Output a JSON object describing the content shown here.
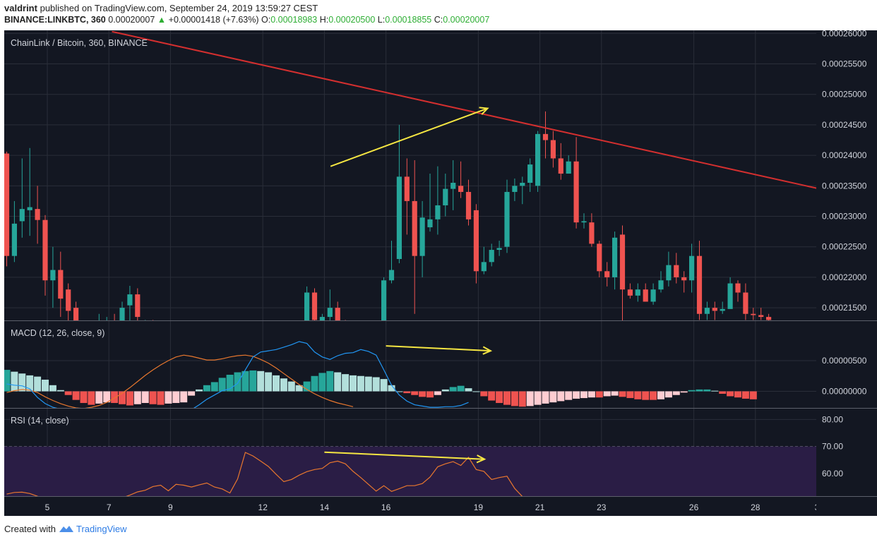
{
  "header": {
    "user": "valdrint",
    "published": "published on TradingView.com, September 24, 2019 13:59:27 CEST",
    "symbol": "BINANCE:LINKBTC, 360",
    "price": "0.00020007",
    "change": "+0.00001418 (+7.63%)",
    "o_label": "O:",
    "o_value": "0.00018983",
    "h_label": "H:",
    "h_value": "0.00020500",
    "l_label": "L:",
    "l_value": "0.00018855",
    "c_label": "C:",
    "c_value": "0.00020007"
  },
  "footer": {
    "created_with": "Created with",
    "brand": "TradingView"
  },
  "colors": {
    "background": "#131722",
    "grid": "#2a2e39",
    "text": "#d1d4dc",
    "up": "#26a69a",
    "down": "#ef5350",
    "trendline": "#d32f2f",
    "annotation": "#f5e642",
    "macd_line": "#2196f3",
    "signal_line": "#e8772e",
    "hist_up_strong": "#26a69a",
    "hist_up_weak": "#b2dfdb",
    "hist_down_strong": "#ef5350",
    "hist_down_weak": "#ffcdd2",
    "rsi_line": "#e8772e",
    "rsi_band": "#2a1d45"
  },
  "chart_data": [
    {
      "type": "candlestick",
      "title": "ChainLink / Bitcoin, 360, BINANCE",
      "y_ticks": [
        "0.00026000",
        "0.00025500",
        "0.00025000",
        "0.00024500",
        "0.00024000",
        "0.00023500",
        "0.00023000",
        "0.00022500",
        "0.00022000",
        "0.00021500"
      ],
      "ylim": [
        0.00021236,
        0.0002605
      ],
      "x_ticks": [
        "5",
        "7",
        "9",
        "12",
        "14",
        "16",
        "19",
        "21",
        "23",
        "26",
        "28",
        "3"
      ],
      "candles": [
        {
          "o": 0.0002403,
          "h": 0.0002406,
          "l": 0.0002218,
          "c": 0.0002235
        },
        {
          "o": 0.0002235,
          "h": 0.0002325,
          "l": 0.0002225,
          "c": 0.0002288
        },
        {
          "o": 0.0002292,
          "h": 0.0002395,
          "l": 0.0002265,
          "c": 0.0002312
        },
        {
          "o": 0.000231,
          "h": 0.0002412,
          "l": 0.0002268,
          "c": 0.0002315
        },
        {
          "o": 0.0002312,
          "h": 0.000235,
          "l": 0.0002255,
          "c": 0.0002294
        },
        {
          "o": 0.0002294,
          "h": 0.0002302,
          "l": 0.000217,
          "c": 0.0002195
        },
        {
          "o": 0.0002195,
          "h": 0.000225,
          "l": 0.000215,
          "c": 0.0002212
        },
        {
          "o": 0.0002212,
          "h": 0.0002242,
          "l": 0.0002135,
          "c": 0.0002165
        },
        {
          "o": 0.000218,
          "h": 0.000219,
          "l": 0.00021,
          "c": 0.0002145
        },
        {
          "o": 0.000215,
          "h": 0.000216,
          "l": 0.00021,
          "c": 0.000211
        },
        {
          "o": 0.000211,
          "h": 0.0002117,
          "l": 0.00021,
          "c": 0.0002105
        },
        {
          "o": 0.000211,
          "h": 0.0002118,
          "l": 0.00021,
          "c": 0.0002115
        },
        {
          "o": 0.000212,
          "h": 0.000214,
          "l": 0.00021,
          "c": 0.000212
        },
        {
          "o": 0.000212,
          "h": 0.0002135,
          "l": 0.00021,
          "c": 0.0002125
        },
        {
          "o": 0.0002125,
          "h": 0.000214,
          "l": 0.00021,
          "c": 0.0002118
        },
        {
          "o": 0.000212,
          "h": 0.000216,
          "l": 0.00021,
          "c": 0.000215
        },
        {
          "o": 0.0002154,
          "h": 0.0002186,
          "l": 0.00021,
          "c": 0.0002172
        },
        {
          "o": 0.0002172,
          "h": 0.0002182,
          "l": 0.00021,
          "c": 0.0002135
        },
        {
          "o": 0.000212,
          "h": 0.000213,
          "l": 0.00021,
          "c": 0.0002125
        },
        {
          "o": 0.0002125,
          "h": 0.000213,
          "l": 0.00021,
          "c": 0.0002118
        },
        {
          "o": 0.0002118,
          "h": 0.0002125,
          "l": 0.00021,
          "c": 0.0002112
        },
        {
          "o": 0.0002112,
          "h": 0.0002122,
          "l": 0.00021,
          "c": 0.0002117
        },
        {
          "o": 0.0002117,
          "h": 0.0002126,
          "l": 0.00021,
          "c": 0.0002115
        },
        {
          "o": 0.0002115,
          "h": 0.0002125,
          "l": 0.00021,
          "c": 0.0002113
        },
        {
          "o": 0.0002113,
          "h": 0.0002123,
          "l": 0.00021,
          "c": 0.0002116
        },
        {
          "o": 0.0002116,
          "h": 0.0002124,
          "l": 0.00021,
          "c": 0.0002114
        },
        {
          "o": 0.0002114,
          "h": 0.0002124,
          "l": 0.00021,
          "c": 0.0002118
        },
        {
          "o": 0.0002118,
          "h": 0.0002125,
          "l": 0.00021,
          "c": 0.0002115
        },
        {
          "o": 0.0002115,
          "h": 0.0002123,
          "l": 0.00021,
          "c": 0.0002117
        },
        {
          "o": 0.0002117,
          "h": 0.0002125,
          "l": 0.00021,
          "c": 0.0002114
        },
        {
          "o": 0.0002114,
          "h": 0.0002122,
          "l": 0.00021,
          "c": 0.0002116
        },
        {
          "o": 0.0002116,
          "h": 0.0002124,
          "l": 0.00021,
          "c": 0.0002113
        },
        {
          "o": 0.0002113,
          "h": 0.0002123,
          "l": 0.00021,
          "c": 0.0002115
        },
        {
          "o": 0.0002115,
          "h": 0.0002122,
          "l": 0.00021,
          "c": 0.0002112
        },
        {
          "o": 0.0002112,
          "h": 0.0002122,
          "l": 0.00021,
          "c": 0.0002114
        },
        {
          "o": 0.0002114,
          "h": 0.0002124,
          "l": 0.00021,
          "c": 0.0002116
        },
        {
          "o": 0.0002116,
          "h": 0.0002125,
          "l": 0.00021,
          "c": 0.0002113
        },
        {
          "o": 0.0002113,
          "h": 0.0002122,
          "l": 0.00021,
          "c": 0.0002115
        },
        {
          "o": 0.0002115,
          "h": 0.0002124,
          "l": 0.00021,
          "c": 0.0002112
        },
        {
          "o": 0.000211,
          "h": 0.0002185,
          "l": 0.00021,
          "c": 0.0002175
        },
        {
          "o": 0.0002175,
          "h": 0.0002182,
          "l": 0.000212,
          "c": 0.000213
        },
        {
          "o": 0.0002125,
          "h": 0.000214,
          "l": 0.00021,
          "c": 0.0002135
        },
        {
          "o": 0.0002135,
          "h": 0.000218,
          "l": 0.000211,
          "c": 0.000215
        },
        {
          "o": 0.000215,
          "h": 0.000216,
          "l": 0.00021,
          "c": 0.000212
        },
        {
          "o": 0.000212,
          "h": 0.000213,
          "l": 0.00021,
          "c": 0.0002115
        },
        {
          "o": 0.0002115,
          "h": 0.000212,
          "l": 0.00021,
          "c": 0.000211
        },
        {
          "o": 0.000211,
          "h": 0.000212,
          "l": 0.00021,
          "c": 0.0002112
        },
        {
          "o": 0.0002112,
          "h": 0.000212,
          "l": 0.00021,
          "c": 0.0002114
        },
        {
          "o": 0.0002114,
          "h": 0.000212,
          "l": 0.00021,
          "c": 0.0002111
        },
        {
          "o": 0.000212,
          "h": 0.00022,
          "l": 0.000212,
          "c": 0.0002195
        },
        {
          "o": 0.0002195,
          "h": 0.000226,
          "l": 0.000219,
          "c": 0.0002212
        },
        {
          "o": 0.000223,
          "h": 0.000245,
          "l": 0.0002223,
          "c": 0.0002365
        },
        {
          "o": 0.0002365,
          "h": 0.0002395,
          "l": 0.000227,
          "c": 0.0002325
        },
        {
          "o": 0.0002325,
          "h": 0.0002392,
          "l": 0.000214,
          "c": 0.0002235
        },
        {
          "o": 0.0002235,
          "h": 0.0002325,
          "l": 0.00022,
          "c": 0.0002298
        },
        {
          "o": 0.0002282,
          "h": 0.000237,
          "l": 0.0002275,
          "c": 0.0002295
        },
        {
          "o": 0.0002295,
          "h": 0.0002382,
          "l": 0.000227,
          "c": 0.0002318
        },
        {
          "o": 0.0002318,
          "h": 0.000237,
          "l": 0.00023,
          "c": 0.0002345
        },
        {
          "o": 0.0002345,
          "h": 0.0002392,
          "l": 0.000231,
          "c": 0.0002355
        },
        {
          "o": 0.000235,
          "h": 0.000239,
          "l": 0.000233,
          "c": 0.000234
        },
        {
          "o": 0.000234,
          "h": 0.000236,
          "l": 0.0002285,
          "c": 0.0002295
        },
        {
          "o": 0.000231,
          "h": 0.000232,
          "l": 0.000219,
          "c": 0.000221
        },
        {
          "o": 0.000221,
          "h": 0.000225,
          "l": 0.0002205,
          "c": 0.0002225
        },
        {
          "o": 0.0002225,
          "h": 0.0002255,
          "l": 0.0002218,
          "c": 0.0002245
        },
        {
          "o": 0.0002245,
          "h": 0.000226,
          "l": 0.0002235,
          "c": 0.0002248
        },
        {
          "o": 0.000225,
          "h": 0.000236,
          "l": 0.000224,
          "c": 0.000234
        },
        {
          "o": 0.000234,
          "h": 0.0002362,
          "l": 0.0002325,
          "c": 0.000235
        },
        {
          "o": 0.000235,
          "h": 0.0002365,
          "l": 0.000232,
          "c": 0.0002355
        },
        {
          "o": 0.0002355,
          "h": 0.0002395,
          "l": 0.000234,
          "c": 0.0002385
        },
        {
          "o": 0.000235,
          "h": 0.000244,
          "l": 0.000234,
          "c": 0.0002435
        },
        {
          "o": 0.0002435,
          "h": 0.0002472,
          "l": 0.0002395,
          "c": 0.0002425
        },
        {
          "o": 0.0002425,
          "h": 0.000244,
          "l": 0.000238,
          "c": 0.0002395
        },
        {
          "o": 0.0002395,
          "h": 0.000242,
          "l": 0.000236,
          "c": 0.000237
        },
        {
          "o": 0.000237,
          "h": 0.00024,
          "l": 0.000237,
          "c": 0.000239
        },
        {
          "o": 0.000239,
          "h": 0.000243,
          "l": 0.000228,
          "c": 0.000229
        },
        {
          "o": 0.000229,
          "h": 0.0002305,
          "l": 0.000228,
          "c": 0.0002292
        },
        {
          "o": 0.000229,
          "h": 0.0002305,
          "l": 0.000225,
          "c": 0.0002255
        },
        {
          "o": 0.0002255,
          "h": 0.000226,
          "l": 0.00022,
          "c": 0.000221
        },
        {
          "o": 0.000221,
          "h": 0.0002225,
          "l": 0.0002185,
          "c": 0.00022
        },
        {
          "o": 0.00022,
          "h": 0.0002275,
          "l": 0.000218,
          "c": 0.0002265
        },
        {
          "o": 0.000227,
          "h": 0.0002285,
          "l": 0.0002125,
          "c": 0.000218
        },
        {
          "o": 0.000218,
          "h": 0.000219,
          "l": 0.0002165,
          "c": 0.000217
        },
        {
          "o": 0.000217,
          "h": 0.000219,
          "l": 0.000216,
          "c": 0.000218
        },
        {
          "o": 0.000218,
          "h": 0.000219,
          "l": 0.000216,
          "c": 0.000216
        },
        {
          "o": 0.000216,
          "h": 0.000219,
          "l": 0.0002155,
          "c": 0.000218
        },
        {
          "o": 0.000218,
          "h": 0.000221,
          "l": 0.0002175,
          "c": 0.0002195
        },
        {
          "o": 0.0002195,
          "h": 0.0002242,
          "l": 0.0002185,
          "c": 0.000222
        },
        {
          "o": 0.000222,
          "h": 0.000224,
          "l": 0.000219,
          "c": 0.00022
        },
        {
          "o": 0.00022,
          "h": 0.000221,
          "l": 0.0002175,
          "c": 0.0002195
        },
        {
          "o": 0.0002195,
          "h": 0.0002255,
          "l": 0.0002175,
          "c": 0.0002235
        },
        {
          "o": 0.0002235,
          "h": 0.000226,
          "l": 0.000213,
          "c": 0.000214
        },
        {
          "o": 0.000214,
          "h": 0.000216,
          "l": 0.000213,
          "c": 0.000215
        },
        {
          "o": 0.000215,
          "h": 0.000216,
          "l": 0.000213,
          "c": 0.0002145
        },
        {
          "o": 0.0002145,
          "h": 0.000216,
          "l": 0.000214,
          "c": 0.0002148
        },
        {
          "o": 0.0002148,
          "h": 0.00022,
          "l": 0.000215,
          "c": 0.000219
        },
        {
          "o": 0.000219,
          "h": 0.0002195,
          "l": 0.000216,
          "c": 0.0002175
        },
        {
          "o": 0.0002175,
          "h": 0.000219,
          "l": 0.000213,
          "c": 0.000214
        },
        {
          "o": 0.000214,
          "h": 0.000215,
          "l": 0.000213,
          "c": 0.0002138
        },
        {
          "o": 0.0002138,
          "h": 0.000215,
          "l": 0.000213,
          "c": 0.0002135
        },
        {
          "o": 0.0002135,
          "h": 0.000214,
          "l": 0.000212,
          "c": 0.000213
        }
      ]
    },
    {
      "type": "bar",
      "title": "MACD (12, 26, close, 9)",
      "y_ticks": [
        "0.00000500",
        "0.00000000"
      ],
      "histogram": [
        3.5,
        3.2,
        2.9,
        2.6,
        2.4,
        1.9,
        1.0,
        0.2,
        -0.6,
        -1.4,
        -1.9,
        -2.2,
        -2.0,
        -1.8,
        -1.9,
        -2.1,
        -2.3,
        -2.1,
        -1.9,
        -2.1,
        -2.2,
        -2.0,
        -1.9,
        -1.8,
        -0.7,
        0.3,
        1.0,
        1.5,
        2.2,
        2.7,
        3.1,
        3.3,
        3.4,
        3.3,
        3.1,
        2.6,
        2.1,
        1.6,
        1.0,
        1.6,
        2.5,
        3.0,
        3.3,
        3.1,
        2.8,
        2.6,
        2.5,
        2.4,
        2.3,
        2.0,
        1.0,
        0.0,
        -0.3,
        -0.6,
        -0.9,
        -1.0,
        -0.6,
        0.3,
        0.7,
        0.9,
        0.5,
        0.0,
        -0.8,
        -1.5,
        -1.9,
        -2.2,
        -2.4,
        -2.5,
        -2.4,
        -2.2,
        -2.0,
        -1.8,
        -1.6,
        -1.4,
        -1.2,
        -1.1,
        -1.0,
        -1.0,
        -0.8,
        -0.7,
        -0.9,
        -1.1,
        -1.3,
        -1.4,
        -1.4,
        -1.3,
        -1.0,
        -0.6,
        -0.2,
        0.2,
        0.3,
        0.3,
        0.1,
        -0.4,
        -0.8,
        -1.0,
        -1.2,
        -1.3
      ],
      "macd_line": [
        1.2,
        1.0,
        0.9,
        0.4,
        -1.0,
        -2.0,
        -2.6,
        -2.9,
        -3.0,
        -3.0,
        -3.0,
        -3.0,
        -3.0,
        -3.0,
        -3.0,
        -3.0,
        -3.0,
        -3.0,
        -3.0,
        -3.0,
        -3.0,
        -3.0,
        -3.0,
        -3.0,
        -3.0,
        -2.2,
        -1.3,
        -0.6,
        0.1,
        0.4,
        1.3,
        3.5,
        5.6,
        6.4,
        6.6,
        6.8,
        7.2,
        7.6,
        8.1,
        7.8,
        6.4,
        5.6,
        5.2,
        5.8,
        6.2,
        6.3,
        6.8,
        6.5,
        5.9,
        3.5,
        1.0,
        -0.6,
        -1.6,
        -2.2,
        -2.4,
        -2.6,
        -2.6,
        -2.5,
        -2.5,
        -2.3,
        -1.8
      ],
      "signal_line": [
        -0.2,
        0.1,
        0.3,
        0.2,
        -0.2,
        -0.9,
        -1.5,
        -2.0,
        -2.4,
        -2.7,
        -2.8,
        -2.6,
        -2.3,
        -1.8,
        -1.1,
        -0.3,
        0.6,
        1.6,
        2.6,
        3.5,
        4.3,
        5.0,
        5.6,
        5.9,
        5.7,
        5.4,
        5.1,
        5.1,
        5.3,
        5.6,
        5.8,
        5.9,
        5.7,
        5.2,
        4.6,
        3.8,
        2.9,
        2.0,
        1.1,
        0.3,
        -0.4,
        -1.0,
        -1.5,
        -1.9,
        -2.2,
        -2.5
      ]
    },
    {
      "type": "line",
      "title": "RSI (14, close)",
      "y_ticks": [
        "80.00",
        "70.00",
        "60.00"
      ],
      "ylim": [
        52.2,
        84.5
      ],
      "band": [
        30,
        70
      ],
      "values": [
        52.4,
        53.0,
        53.1,
        52.6,
        51.6,
        50.5,
        49.8,
        49.5,
        49.3,
        49.2,
        49.2,
        49.2,
        49.5,
        49.6,
        50.0,
        51.0,
        52.0,
        53.2,
        53.8,
        55.2,
        55.7,
        53.6,
        56.0,
        55.7,
        55.0,
        55.8,
        56.5,
        55.0,
        54.3,
        52.8,
        58.0,
        67.8,
        66.5,
        64.6,
        62.6,
        59.7,
        57.0,
        57.8,
        59.4,
        60.7,
        61.5,
        61.9,
        64.0,
        64.6,
        63.6,
        60.8,
        58.5,
        56.0,
        53.5,
        55.5,
        53.4,
        54.4,
        55.5,
        55.5,
        56.3,
        58.7,
        62.5,
        63.6,
        64.4,
        63.0,
        66.0,
        61.5,
        60.8,
        57.8,
        58.5,
        59.0,
        54.5,
        51.5,
        47.5
      ]
    }
  ],
  "annotations": {
    "price_arrow": [
      [
        14.2,
        0.0002382
      ],
      [
        19.3,
        0.0002477
      ]
    ],
    "macd_arrow": [
      [
        16.0,
        7.4
      ],
      [
        19.4,
        6.6
      ]
    ],
    "rsi_arrow": [
      [
        14.0,
        67.9
      ],
      [
        19.2,
        65.3
      ]
    ],
    "trendline": [
      [
        7.1,
        0.0002603
      ],
      [
        30.8,
        0.0002337
      ]
    ]
  }
}
